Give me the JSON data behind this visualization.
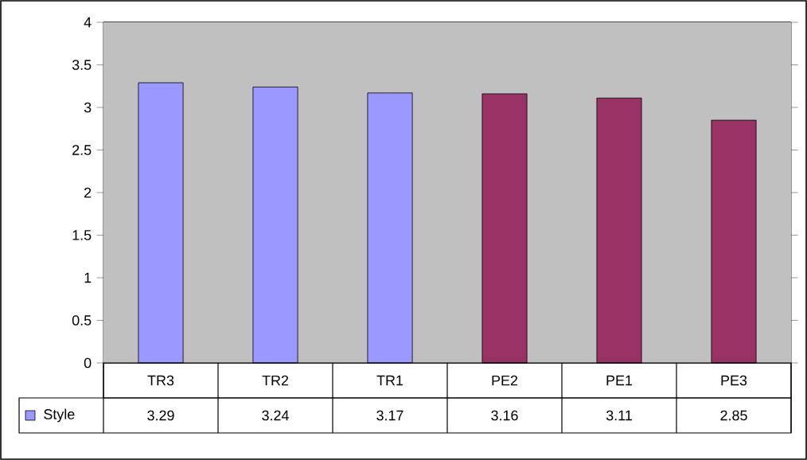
{
  "chart_data": {
    "type": "bar",
    "categories": [
      "TR3",
      "TR2",
      "TR1",
      "PE2",
      "PE1",
      "PE3"
    ],
    "series": [
      {
        "name": "Style",
        "color": "#9999ff",
        "colors": [
          "#9999ff",
          "#9999ff",
          "#9999ff",
          "#993366",
          "#993366",
          "#993366"
        ],
        "values": [
          3.29,
          3.24,
          3.17,
          3.16,
          3.11,
          2.85
        ]
      }
    ],
    "ylim": [
      0,
      4
    ],
    "yticks": [
      0,
      0.5,
      1,
      1.5,
      2,
      2.5,
      3,
      3.5,
      4
    ],
    "grid": "y",
    "data_labels": true
  }
}
